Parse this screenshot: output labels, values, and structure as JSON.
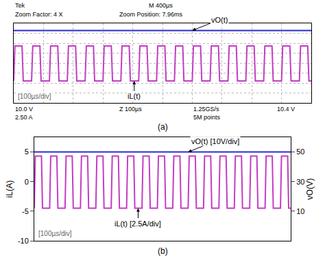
{
  "chart_data": [
    {
      "type": "line",
      "header": [
        "Tek",
        "M 400µs",
        "Zoom Factor: 4 X",
        "Zoom Position: 7.96ms"
      ],
      "status": [
        "10.0 V",
        "2.50 A",
        "Z 100µs",
        "1.25GS/s",
        "5M points",
        "10.4 V"
      ],
      "scale_note": "[100µs/div]",
      "caption": "(a)",
      "xlim": [
        0,
        1000
      ],
      "xticks": [
        0,
        100,
        200,
        300,
        400,
        500,
        600,
        700,
        800,
        900,
        1000
      ],
      "ylim": [
        -10,
        10
      ],
      "yticks": [
        -10,
        -7.5,
        -5,
        -2.5,
        0,
        2.5,
        5,
        7.5,
        10
      ],
      "y2lim": [
        0,
        55
      ],
      "y2ticks": [
        0,
        10,
        20,
        30,
        40,
        50
      ],
      "tick_labels": false,
      "grid": true,
      "series": [
        {
          "color": "#2b2bd0",
          "axis": "y2",
          "x": [
            0,
            1000
          ],
          "values": [
            50,
            50
          ]
        },
        {
          "color": "#c43cc4",
          "axis": "y",
          "x": [
            0,
            4,
            28,
            32,
            60,
            64,
            88,
            92,
            120,
            124,
            148,
            152,
            180,
            184,
            208,
            212,
            240,
            244,
            268,
            272,
            300,
            304,
            328,
            332,
            360,
            364,
            388,
            392,
            420,
            424,
            448,
            452,
            480,
            484,
            508,
            512,
            540,
            544,
            568,
            572,
            600,
            604,
            628,
            632,
            660,
            664,
            688,
            692,
            720,
            724,
            748,
            752,
            780,
            784,
            808,
            812,
            840,
            844,
            868,
            872,
            900,
            904,
            928,
            932,
            960,
            964,
            988,
            992,
            1000
          ],
          "values": [
            -4.5,
            4.3,
            4.3,
            -4.5,
            -4.5,
            4.3,
            4.3,
            -4.5,
            -4.5,
            4.3,
            4.3,
            -4.5,
            -4.5,
            4.3,
            4.3,
            -4.5,
            -4.5,
            4.3,
            4.3,
            -4.5,
            -4.5,
            4.3,
            4.3,
            -4.5,
            -4.5,
            4.3,
            4.3,
            -4.5,
            -4.5,
            4.3,
            4.3,
            -4.5,
            -4.5,
            4.3,
            4.3,
            -4.5,
            -4.5,
            4.3,
            4.3,
            -4.5,
            -4.5,
            4.3,
            4.3,
            -4.5,
            -4.5,
            4.3,
            4.3,
            -4.5,
            -4.5,
            4.3,
            4.3,
            -4.5,
            -4.5,
            4.3,
            4.3,
            -4.5,
            -4.5,
            4.3,
            4.3,
            -4.5,
            -4.5,
            4.3,
            4.3,
            -4.5,
            -4.5,
            4.3,
            4.3,
            -4.5,
            -4.5
          ]
        }
      ],
      "annotations": [
        {
          "text": "vO(t)",
          "x": 600,
          "y": 50,
          "axis": "y2"
        },
        {
          "text": "iL(t)",
          "x": 405,
          "y": -4.5,
          "axis": "y"
        }
      ]
    },
    {
      "type": "line",
      "scale_note": "[100µs/div]",
      "caption": "(b)",
      "y_label": "iL(A)",
      "y2_label": "vO(V)",
      "xlim": [
        0,
        1000
      ],
      "ylim": [
        -10,
        7.5
      ],
      "yticks": [
        -10,
        -5,
        0,
        5
      ],
      "y2lim": [
        -10,
        60
      ],
      "y2ticks": [
        10,
        30,
        50
      ],
      "tick_labels": "y",
      "grid": false,
      "series": [
        {
          "color": "#2b2bd0",
          "axis": "y2",
          "x": [
            0,
            1000
          ],
          "values": [
            50,
            50
          ]
        },
        {
          "color": "#c43cc4",
          "axis": "y",
          "x": [
            0,
            4,
            28,
            32,
            60,
            64,
            88,
            92,
            120,
            124,
            148,
            152,
            180,
            184,
            208,
            212,
            240,
            244,
            268,
            272,
            300,
            304,
            328,
            332,
            360,
            364,
            388,
            392,
            420,
            424,
            448,
            452,
            480,
            484,
            508,
            512,
            540,
            544,
            568,
            572,
            600,
            604,
            628,
            632,
            660,
            664,
            688,
            692,
            720,
            724,
            748,
            752,
            780,
            784,
            808,
            812,
            840,
            844,
            868,
            872,
            900,
            904,
            928,
            932,
            960,
            964,
            988,
            992,
            1000
          ],
          "values": [
            -4.5,
            4.3,
            4.3,
            -4.5,
            -4.5,
            4.3,
            4.3,
            -4.5,
            -4.5,
            4.3,
            4.3,
            -4.5,
            -4.5,
            4.3,
            4.3,
            -4.5,
            -4.5,
            4.3,
            4.3,
            -4.5,
            -4.5,
            4.3,
            4.3,
            -4.5,
            -4.5,
            4.3,
            4.3,
            -4.5,
            -4.5,
            4.3,
            4.3,
            -4.5,
            -4.5,
            4.3,
            4.3,
            -4.5,
            -4.5,
            4.3,
            4.3,
            -4.5,
            -4.5,
            4.3,
            4.3,
            -4.5,
            -4.5,
            4.3,
            4.3,
            -4.5,
            -4.5,
            4.3,
            4.3,
            -4.5,
            -4.5,
            4.3,
            4.3,
            -4.5,
            -4.5,
            4.3,
            4.3,
            -4.5,
            -4.5,
            4.3,
            4.3,
            -4.5,
            -4.5,
            4.3,
            4.3,
            -4.5,
            -4.5
          ]
        }
      ],
      "annotations": [
        {
          "text": "vO(t) [10V/div]",
          "x": 600,
          "y": 50,
          "axis": "y2"
        },
        {
          "text": "iL(t) [2.5A/div]",
          "x": 405,
          "y": -4.5,
          "axis": "y"
        }
      ]
    }
  ]
}
